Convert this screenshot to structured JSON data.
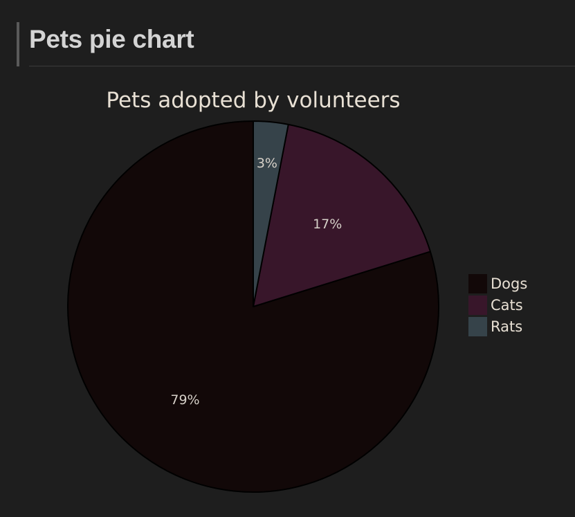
{
  "heading": "Pets pie chart",
  "chart_data": {
    "type": "pie",
    "title": "Pets adopted by volunteers",
    "slices": [
      {
        "name": "Dogs",
        "value": 79,
        "label": "79%",
        "color": "#120808"
      },
      {
        "name": "Cats",
        "value": 17,
        "label": "17%",
        "color": "#38162a"
      },
      {
        "name": "Rats",
        "value": 3,
        "label": "3%",
        "color": "#36434a"
      }
    ],
    "legend_position": "right"
  }
}
